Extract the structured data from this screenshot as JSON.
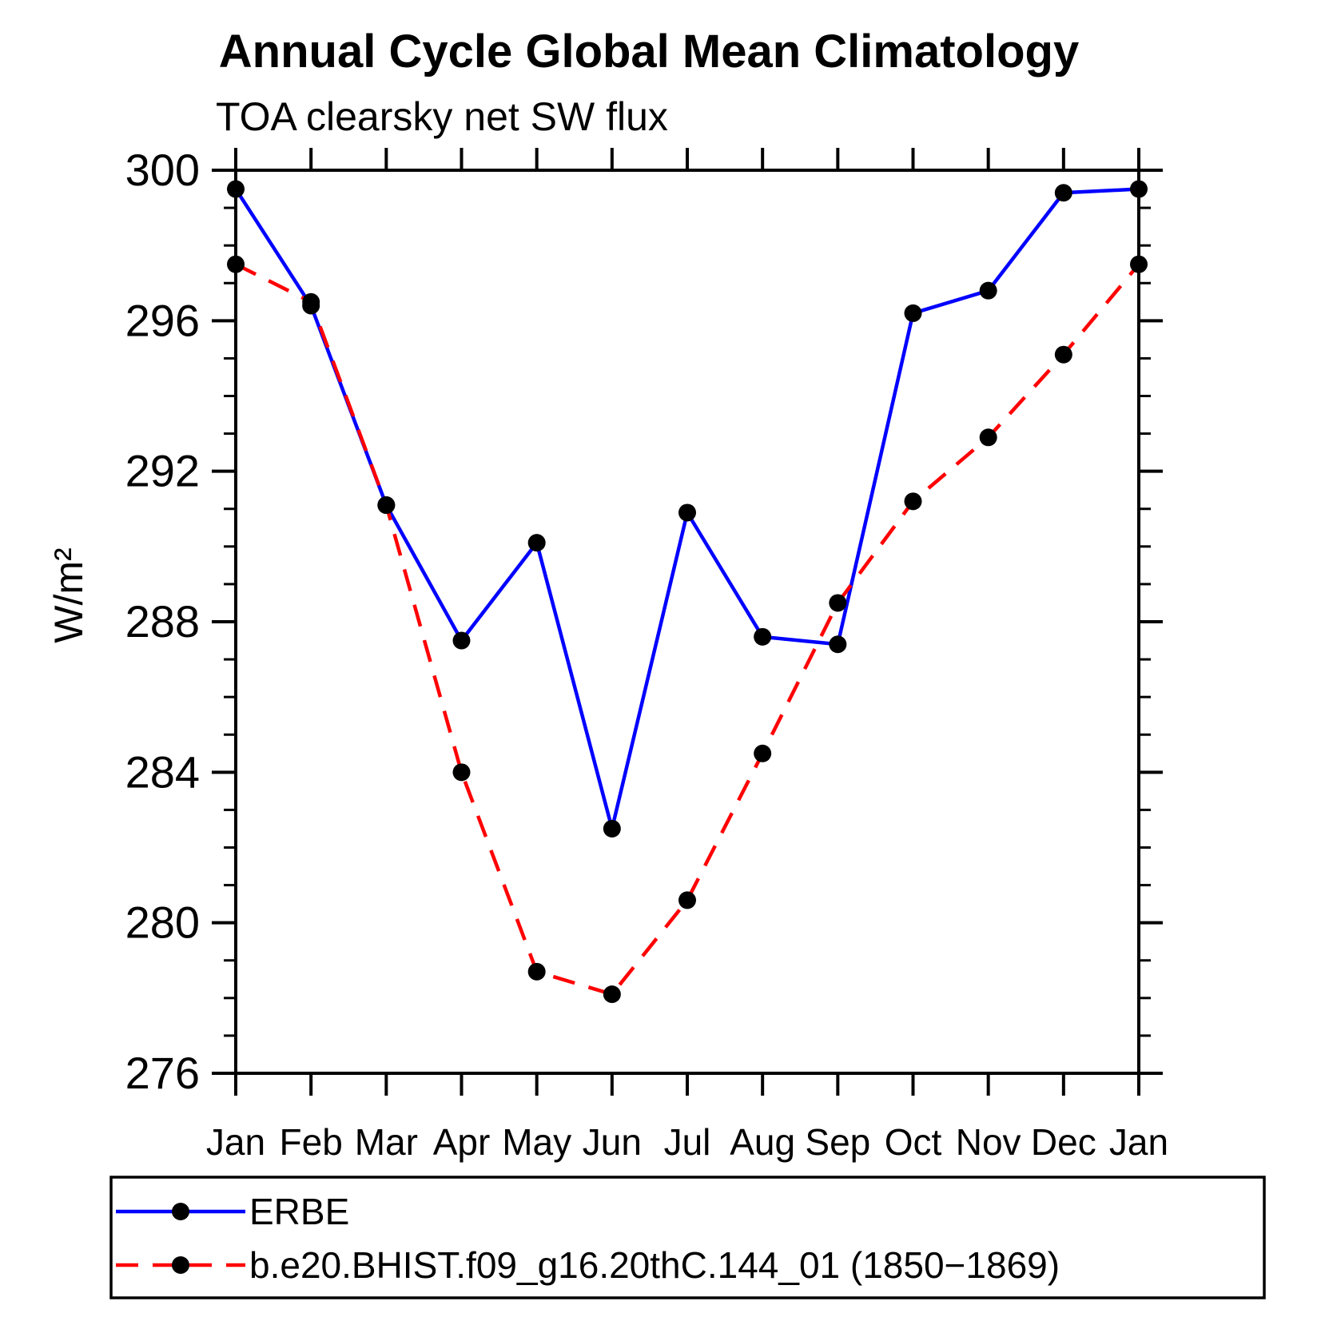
{
  "title": "Annual Cycle Global Mean Climatology",
  "subtitle": "TOA clearsky net SW flux",
  "ylabel": "W/m²",
  "colors": {
    "erbe_line": "#0000ff",
    "model_line": "#ff0000",
    "marker": "#000000",
    "axis": "#000000",
    "background": "#ffffff"
  },
  "legend": {
    "entries": [
      {
        "label": "ERBE",
        "style": "solid",
        "color": "#0000ff"
      },
      {
        "label": "b.e20.BHIST.f09_g16.20thC.144_01 (1850−1869)",
        "style": "dashed",
        "color": "#ff0000"
      }
    ]
  },
  "chart_data": {
    "type": "line",
    "categories": [
      "Jan",
      "Feb",
      "Mar",
      "Apr",
      "May",
      "Jun",
      "Jul",
      "Aug",
      "Sep",
      "Oct",
      "Nov",
      "Dec",
      "Jan"
    ],
    "series": [
      {
        "name": "ERBE",
        "color": "#0000ff",
        "dash": "solid",
        "marker": "circle",
        "values": [
          299.5,
          296.4,
          291.1,
          287.5,
          290.1,
          282.5,
          290.9,
          287.6,
          287.4,
          296.2,
          296.8,
          299.4,
          299.5
        ]
      },
      {
        "name": "b.e20.BHIST.f09_g16.20thC.144_01 (1850−1869)",
        "color": "#ff0000",
        "dash": "dashed",
        "marker": "circle",
        "values": [
          297.5,
          296.5,
          291.1,
          284.0,
          278.7,
          278.1,
          280.6,
          284.5,
          288.5,
          291.2,
          292.9,
          295.1,
          297.5
        ]
      }
    ],
    "xlabel": "",
    "ylabel": "W/m²",
    "ylim": [
      276,
      300
    ],
    "ytick_labels": [
      "300",
      "296",
      "292",
      "288",
      "284",
      "280",
      "276"
    ],
    "ytick_major_step": 4,
    "ytick_minor_step": 1,
    "grid": false,
    "legend_position": "bottom"
  }
}
